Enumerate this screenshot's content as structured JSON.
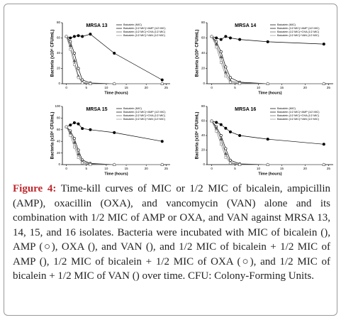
{
  "chart_data": [
    {
      "type": "line",
      "title": "MRSA 13",
      "x_label": "Time (hours)",
      "y_label": "Bacteria (x10⁶ CFU/mL)",
      "x": [
        0,
        1,
        2,
        3,
        4,
        6,
        12,
        24
      ],
      "xlim": [
        -1,
        26
      ],
      "xticks": [
        0,
        5,
        10,
        15,
        20,
        25
      ],
      "ylim": [
        0,
        80
      ],
      "yticks": [
        0,
        20,
        40,
        60,
        80
      ],
      "series": [
        {
          "name": "Baicalein (MIC)",
          "color": "#000000",
          "values": [
            62,
            60,
            62,
            63,
            62,
            65,
            40,
            5
          ]
        },
        {
          "name": "Baicalein (1/2 MIC)+AMP (1/2 MIC)",
          "color": "#000000",
          "values": [
            62,
            55,
            40,
            20,
            5,
            1,
            0,
            0
          ]
        },
        {
          "name": "Baicalein (1/2 MIC)+OXA (1/2 MIC)",
          "color": "#555555",
          "values": [
            62,
            50,
            30,
            10,
            2,
            0,
            0,
            0
          ]
        },
        {
          "name": "Baicalein (1/2 MIC)+VAN (1/2 MIC)",
          "color": "#888888",
          "values": [
            62,
            45,
            25,
            8,
            1,
            0,
            0,
            0
          ]
        }
      ]
    },
    {
      "type": "line",
      "title": "MRSA 14",
      "x_label": "Time (hours)",
      "y_label": "Bacteria (x10⁶ CFU/mL)",
      "x": [
        0,
        1,
        2,
        3,
        4,
        6,
        12,
        24
      ],
      "xlim": [
        -1,
        26
      ],
      "xticks": [
        0,
        5,
        10,
        15,
        20,
        25
      ],
      "ylim": [
        0,
        80
      ],
      "yticks": [
        0,
        20,
        40,
        60,
        80
      ],
      "series": [
        {
          "name": "Baicalein (MIC)",
          "color": "#000000",
          "values": [
            62,
            60,
            58,
            62,
            60,
            58,
            55,
            52
          ]
        },
        {
          "name": "Baicalein (1/2 MIC)+AMP (1/2 MIC)",
          "color": "#000000",
          "values": [
            62,
            55,
            42,
            22,
            8,
            2,
            0,
            0
          ]
        },
        {
          "name": "Baicalein (1/2 MIC)+OXA (1/2 MIC)",
          "color": "#555555",
          "values": [
            62,
            52,
            35,
            15,
            4,
            1,
            0,
            0
          ]
        },
        {
          "name": "Baicalein (1/2 MIC)+VAN (1/2 MIC)",
          "color": "#888888",
          "values": [
            62,
            48,
            28,
            10,
            2,
            0,
            0,
            0
          ]
        }
      ]
    },
    {
      "type": "line",
      "title": "MRSA 15",
      "x_label": "Time (hours)",
      "y_label": "Bacteria (x10⁶ CFU/mL)",
      "x": [
        0,
        1,
        2,
        3,
        4,
        6,
        12,
        24
      ],
      "xlim": [
        -1,
        26
      ],
      "xticks": [
        0,
        5,
        10,
        15,
        20,
        25
      ],
      "ylim": [
        0,
        100
      ],
      "yticks": [
        0,
        20,
        40,
        60,
        80,
        100
      ],
      "series": [
        {
          "name": "Baicalein (MIC)",
          "color": "#000000",
          "values": [
            65,
            68,
            72,
            70,
            62,
            60,
            55,
            40
          ]
        },
        {
          "name": "Baicalein (1/2 MIC)+AMP (1/2 MIC)",
          "color": "#000000",
          "values": [
            65,
            58,
            45,
            25,
            8,
            2,
            0,
            0
          ]
        },
        {
          "name": "Baicalein (1/2 MIC)+OXA (1/2 MIC)",
          "color": "#555555",
          "values": [
            65,
            55,
            38,
            18,
            5,
            1,
            0,
            0
          ]
        },
        {
          "name": "Baicalein (1/2 MIC)+VAN (1/2 MIC)",
          "color": "#888888",
          "values": [
            65,
            50,
            30,
            12,
            3,
            0,
            0,
            0
          ]
        }
      ]
    },
    {
      "type": "line",
      "title": "MRSA 16",
      "x_label": "Time (hours)",
      "y_label": "Bacteria (x10⁶ CFU/mL)",
      "x": [
        0,
        1,
        2,
        3,
        4,
        6,
        12,
        24
      ],
      "xlim": [
        -1,
        26
      ],
      "xticks": [
        0,
        5,
        10,
        15,
        20,
        25
      ],
      "ylim": [
        0,
        80
      ],
      "yticks": [
        0,
        20,
        40,
        60,
        80
      ],
      "series": [
        {
          "name": "Baicalein (MIC)",
          "color": "#000000",
          "values": [
            60,
            58,
            55,
            50,
            45,
            40,
            35,
            28
          ]
        },
        {
          "name": "Baicalein (1/2 MIC)+AMP (1/2 MIC)",
          "color": "#000000",
          "values": [
            60,
            52,
            40,
            22,
            6,
            1,
            0,
            0
          ]
        },
        {
          "name": "Baicalein (1/2 MIC)+OXA (1/2 MIC)",
          "color": "#555555",
          "values": [
            60,
            50,
            35,
            15,
            3,
            0,
            0,
            0
          ]
        },
        {
          "name": "Baicalein (1/2 MIC)+VAN (1/2 MIC)",
          "color": "#888888",
          "values": [
            60,
            46,
            28,
            10,
            2,
            0,
            0,
            0
          ]
        }
      ]
    }
  ],
  "caption": {
    "label": "Figure 4:",
    "text": "Time-kill curves of MIC or 1/2 MIC of bicalein, ampicillin (AMP), oxacillin (OXA), and vancomycin (VAN) alone and its combination with 1/2 MIC of AMP or OXA, and VAN against MRSA 13, 14, 15, and 16 isolates. Bacteria were incubated with MIC of bicalein (), AMP (○), OXA (), and VAN (), and 1/2 MIC of bicalein + 1/2 MIC of AMP (), 1/2 MIC of bicalein + 1/2 MIC of OXA (○), and 1/2 MIC of bicalein + 1/2 MIC of VAN () over time. CFU: Colony-Forming Units."
  }
}
